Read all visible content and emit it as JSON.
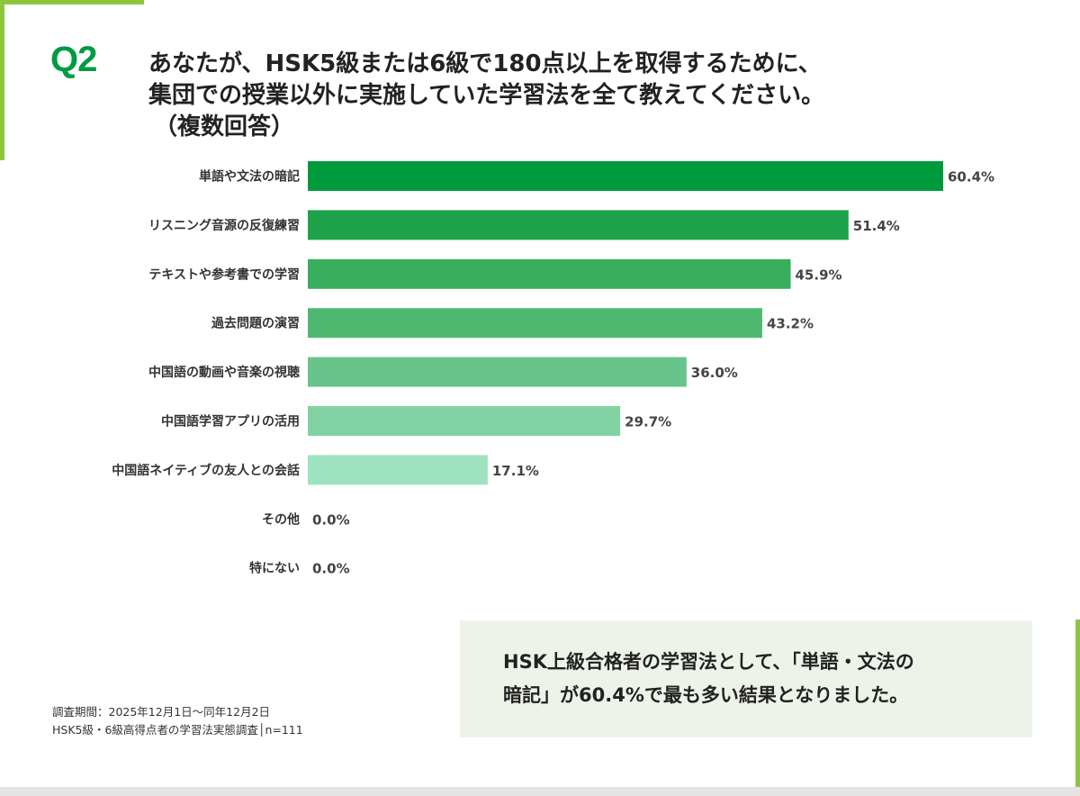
{
  "header": {
    "q_label": "Q2",
    "question_line1": "あなたが、HSK5級または6級で180点以上を取得するために、",
    "question_line2": "集団での授業以外に実施していた学習法を全て教えてください。",
    "question_line3": "（複数回答）"
  },
  "chart_data": {
    "type": "bar",
    "orientation": "horizontal",
    "categories": [
      "単語や文法の暗記",
      "リスニング音源の反復練習",
      "テキストや参考書での学習",
      "過去問題の演習",
      "中国語の動画や音楽の視聴",
      "中国語学習アプリの活用",
      "中国語ネイティブの友人との会話",
      "その他",
      "特にない"
    ],
    "values": [
      60.4,
      51.4,
      45.9,
      43.2,
      36.0,
      29.7,
      17.1,
      0.0,
      0.0
    ],
    "value_labels": [
      "60.4%",
      "51.4%",
      "45.9%",
      "43.2%",
      "36.0%",
      "29.7%",
      "17.1%",
      "0.0%",
      "0.0%"
    ],
    "bar_colors": [
      "#009a3e",
      "#1ea34b",
      "#3aae5f",
      "#4fb870",
      "#68c48a",
      "#82d3a3",
      "#9ee2bf",
      "#b8ecd1",
      "#b8ecd1"
    ],
    "xlim": [
      0,
      60.4
    ],
    "grid": false,
    "legend": "none"
  },
  "summary": {
    "line1": "HSK上級合格者の学習法として、「単語・文法の",
    "line2": "暗記」が60.4%で最も多い結果となりました。"
  },
  "footnote": {
    "line1": "調査期間：2025年12月1日〜同年12月2日",
    "line2": "HSK5級・6級高得点者の学習法実態調査│n=111"
  },
  "colors": {
    "accent_green": "#009a44",
    "frame_green": "#8cc63f",
    "summary_bg": "#eef3ea"
  }
}
